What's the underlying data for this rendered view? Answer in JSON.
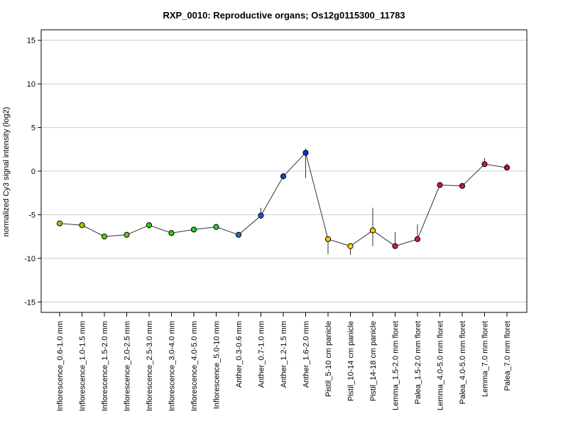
{
  "chart_data": {
    "type": "line",
    "title": "RXP_0010: Reproductive organs; Os12g0115300_11783",
    "xlabel": "",
    "ylabel": "normalized Cy3 signal intensity (log2)",
    "ylim": [
      -16.2,
      16.2
    ],
    "yticks": [
      -15,
      -10,
      -5,
      0,
      5,
      10,
      15
    ],
    "grid": true,
    "categories": [
      "Inflorescence_0.6-1.0 mm",
      "Inflorescence_1.0-1.5 mm",
      "Inflorescence_1.5-2.0 mm",
      "Inflorescence_2.0-2.5 mm",
      "Inflorescence_2.5-3.0 mm",
      "Inflorescence_3.0-4.0 mm",
      "Inflorescence_4.0-5.0 mm",
      "Inflorescence_5.0-10 mm",
      "Anther_0.3-0.6 mm",
      "Anther_0.7-1.0 mm",
      "Anther_1.2-1.5 mm",
      "Anther_1.6-2.0 mm",
      "Pistil_5-10 cm panicle",
      "Pistil_10-14 cm panicle",
      "Pistil_14-18 cm panicle",
      "Lemma_1.5-2.0 mm floret",
      "Palea_1.5-2.0 mm floret",
      "Lemma_4.0-5.0 mm floret",
      "Palea_4.0-5.0 mm floret",
      "Lemma_7.0 mm floret",
      "Palea_7.0 mm floret"
    ],
    "values": [
      -6.0,
      -6.2,
      -7.5,
      -7.3,
      -6.2,
      -7.1,
      -6.7,
      -6.4,
      -7.3,
      -5.1,
      -0.6,
      2.1,
      -7.8,
      -8.6,
      -6.8,
      -8.6,
      -7.8,
      -1.6,
      -1.7,
      0.8,
      0.4
    ],
    "err_low": [
      -6.0,
      -6.4,
      -7.6,
      -7.4,
      -6.6,
      -7.4,
      -6.8,
      -6.5,
      -7.4,
      -5.5,
      -0.9,
      -0.8,
      -9.5,
      -9.6,
      -8.6,
      -8.8,
      -8.0,
      -1.7,
      -1.8,
      0.6,
      0.2
    ],
    "err_high": [
      -5.9,
      -6.0,
      -7.4,
      -7.2,
      -5.9,
      -6.9,
      -6.6,
      -6.3,
      -7.2,
      -4.2,
      -0.2,
      2.6,
      -7.6,
      -8.3,
      -4.2,
      -7.0,
      -6.1,
      -1.5,
      -1.6,
      1.5,
      0.9
    ],
    "point_colors": [
      "#99cc00",
      "#99cc00",
      "#66cc00",
      "#66cc00",
      "#33cc00",
      "#33cc00",
      "#33cc33",
      "#33cc33",
      "#3366cc",
      "#2255cc",
      "#1144cc",
      "#0033cc",
      "#ffcc00",
      "#ffdd00",
      "#ffcc00",
      "#dd1177",
      "#dd1177",
      "#cc1166",
      "#cc1166",
      "#cc1166",
      "#bb1155"
    ],
    "line_color": "#333333"
  }
}
